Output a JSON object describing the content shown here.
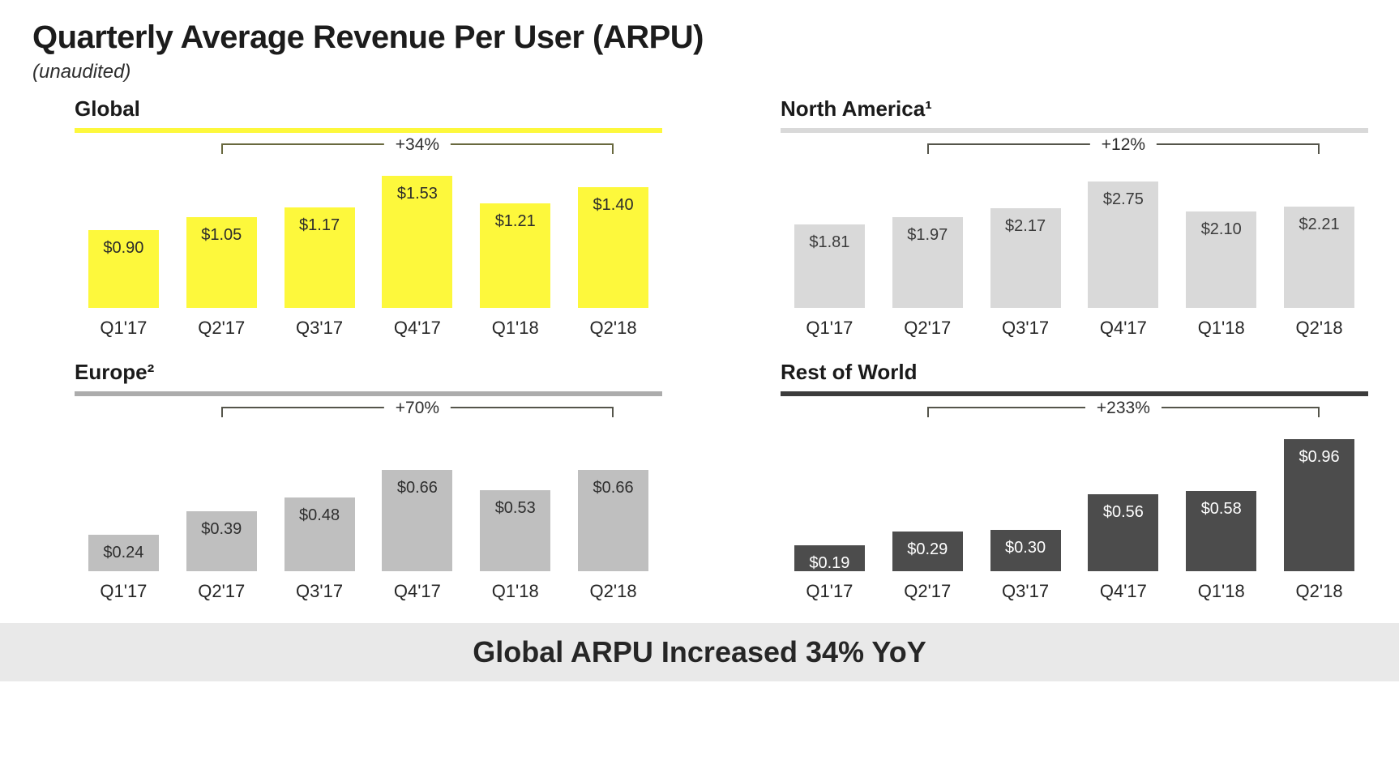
{
  "title": "Quarterly Average Revenue Per User (ARPU)",
  "subtitle": "(unaudited)",
  "footer": {
    "text": "Global ARPU Increased 34% YoY"
  },
  "chart_data": [
    {
      "type": "bar",
      "title": "Global",
      "categories": [
        "Q1'17",
        "Q2'17",
        "Q3'17",
        "Q4'17",
        "Q1'18",
        "Q2'18"
      ],
      "values": [
        0.9,
        1.05,
        1.17,
        1.53,
        1.21,
        1.4
      ],
      "value_labels": [
        "$0.90",
        "$1.05",
        "$1.17",
        "$1.53",
        "$1.21",
        "$1.40"
      ],
      "annotation": {
        "text": "+34%",
        "from_category": "Q2'17",
        "to_category": "Q2'18"
      },
      "ylim": [
        0,
        1.6
      ],
      "grid": false,
      "legend": "none",
      "colors": {
        "bar": "#FDF83C",
        "label": "#2b2b2b",
        "underline": "#FDF83C",
        "bracket": "#69693F"
      }
    },
    {
      "type": "bar",
      "title": "North America¹",
      "categories": [
        "Q1'17",
        "Q2'17",
        "Q3'17",
        "Q4'17",
        "Q1'18",
        "Q2'18"
      ],
      "values": [
        1.81,
        1.97,
        2.17,
        2.75,
        2.1,
        2.21
      ],
      "value_labels": [
        "$1.81",
        "$1.97",
        "$2.17",
        "$2.75",
        "$2.10",
        "$2.21"
      ],
      "annotation": {
        "text": "+12%",
        "from_category": "Q2'17",
        "to_category": "Q2'18"
      },
      "ylim": [
        0,
        3.0
      ],
      "grid": false,
      "legend": "none",
      "colors": {
        "bar": "#D9D9D9",
        "label": "#3b3b3b",
        "underline": "#D9D9D9",
        "bracket": "#55554B"
      }
    },
    {
      "type": "bar",
      "title": "Europe²",
      "categories": [
        "Q1'17",
        "Q2'17",
        "Q3'17",
        "Q4'17",
        "Q1'18",
        "Q2'18"
      ],
      "values": [
        0.24,
        0.39,
        0.48,
        0.66,
        0.53,
        0.66
      ],
      "value_labels": [
        "$0.24",
        "$0.39",
        "$0.48",
        "$0.66",
        "$0.53",
        "$0.66"
      ],
      "annotation": {
        "text": "+70%",
        "from_category": "Q2'17",
        "to_category": "Q2'18"
      },
      "ylim": [
        0,
        0.9
      ],
      "grid": false,
      "legend": "none",
      "colors": {
        "bar": "#BFBFBF",
        "label": "#2f2f2f",
        "underline": "#ACACAC",
        "bracket": "#55554B"
      }
    },
    {
      "type": "bar",
      "title": "Rest of World",
      "categories": [
        "Q1'17",
        "Q2'17",
        "Q3'17",
        "Q4'17",
        "Q1'18",
        "Q2'18"
      ],
      "values": [
        0.19,
        0.29,
        0.3,
        0.56,
        0.58,
        0.96
      ],
      "value_labels": [
        "$0.19",
        "$0.29",
        "$0.30",
        "$0.56",
        "$0.58",
        "$0.96"
      ],
      "annotation": {
        "text": "+233%",
        "from_category": "Q2'17",
        "to_category": "Q2'18"
      },
      "ylim": [
        0,
        1.0
      ],
      "grid": false,
      "legend": "none",
      "colors": {
        "bar": "#4C4C4C",
        "label": "#ffffff",
        "underline": "#3C3C3C",
        "bracket": "#55554B"
      }
    }
  ]
}
